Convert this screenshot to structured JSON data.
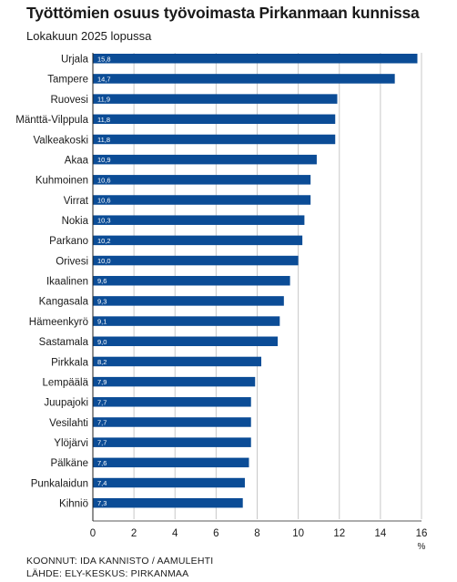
{
  "title": "Työttömien osuus työvoimasta Pirkanmaan kunnissa",
  "subtitle": "Lokakuun 2025 lopussa",
  "credits": {
    "made_by": "KOONNUT: IDA KANNISTO / AAMULEHTI",
    "source": "LÄHDE: ELY-KESKUS: PIRKANMAA"
  },
  "colors": {
    "bar": "#0b4c96",
    "bar_label": "#ffffff",
    "grid": "#c8c8c8",
    "axis": "#222222"
  },
  "chart_data": {
    "type": "bar",
    "orientation": "horizontal",
    "categories": [
      "Urjala",
      "Tampere",
      "Ruovesi",
      "Mänttä-Vilppula",
      "Valkeakoski",
      "Akaa",
      "Kuhmoinen",
      "Virrat",
      "Nokia",
      "Parkano",
      "Orivesi",
      "Ikaalinen",
      "Kangasala",
      "Hämeenkyrö",
      "Sastamala",
      "Pirkkala",
      "Lempäälä",
      "Juupajoki",
      "Vesilahti",
      "Ylöjärvi",
      "Pälkäne",
      "Punkalaidun",
      "Kihniö"
    ],
    "values": [
      15.8,
      14.7,
      11.9,
      11.8,
      11.8,
      10.9,
      10.6,
      10.6,
      10.3,
      10.2,
      10.0,
      9.6,
      9.3,
      9.1,
      9.0,
      8.2,
      7.9,
      7.7,
      7.7,
      7.7,
      7.6,
      7.4,
      7.3
    ],
    "value_labels": [
      "15,8",
      "14,7",
      "11,9",
      "11,8",
      "11,8",
      "10,9",
      "10,6",
      "10,6",
      "10,3",
      "10,2",
      "10,0",
      "9,6",
      "9,3",
      "9,1",
      "9,0",
      "8,2",
      "7,9",
      "7,7",
      "7,7",
      "7,7",
      "7,6",
      "7,4",
      "7,3"
    ],
    "xlim": [
      0,
      16
    ],
    "xticks": [
      0,
      2,
      4,
      6,
      8,
      10,
      12,
      14,
      16
    ],
    "xlabel": "%",
    "grid": true
  }
}
